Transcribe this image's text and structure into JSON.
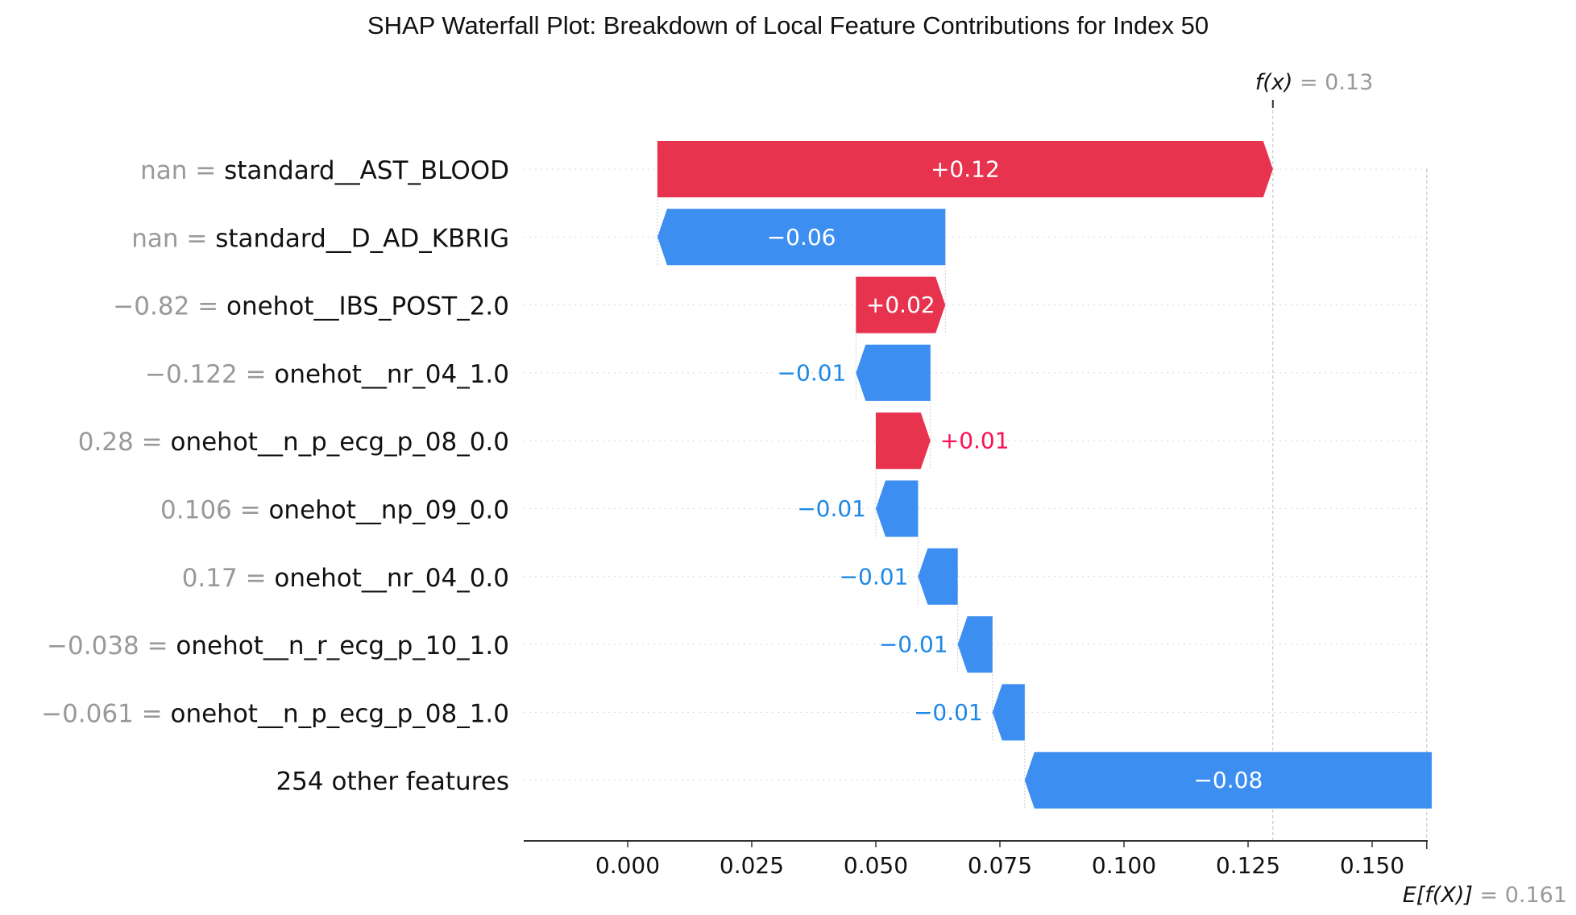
{
  "chart_data": {
    "type": "waterfall",
    "title": "SHAP Waterfall Plot: Breakdown of Local Feature Contributions for Index 50",
    "base_value": 0.161,
    "base_label_prefix": "E[f(X)]",
    "base_label_value": "= 0.161",
    "output_value": 0.13,
    "output_label_prefix": "f(x)",
    "output_label_value": "= 0.13",
    "xlim": [
      -0.021,
      0.161
    ],
    "x_ticks": [
      {
        "value": 0.0,
        "label": "0.000"
      },
      {
        "value": 0.025,
        "label": "0.025"
      },
      {
        "value": 0.05,
        "label": "0.050"
      },
      {
        "value": 0.075,
        "label": "0.075"
      },
      {
        "value": 0.1,
        "label": "0.100"
      },
      {
        "value": 0.125,
        "label": "0.125"
      },
      {
        "value": 0.15,
        "label": "0.150"
      }
    ],
    "colors": {
      "positive": "#ff0d57",
      "positive_fill": "#e8334f",
      "negative": "#1e88e5",
      "negative_fill": "#3c8ef0"
    },
    "features": [
      {
        "value_text": "nan",
        "name": "standard__AST_BLOOD",
        "shap": 0.124,
        "label": "+0.12"
      },
      {
        "value_text": "nan",
        "name": "standard__D_AD_KBRIG",
        "shap": -0.058,
        "label": "−0.06"
      },
      {
        "value_text": "−0.82",
        "name": "onehot__IBS_POST_2.0",
        "shap": 0.018,
        "label": "+0.02"
      },
      {
        "value_text": "−0.122",
        "name": "onehot__nr_04_1.0",
        "shap": -0.015,
        "label": "−0.01"
      },
      {
        "value_text": "0.28",
        "name": "onehot__n_p_ecg_p_08_0.0",
        "shap": 0.011,
        "label": "+0.01"
      },
      {
        "value_text": "0.106",
        "name": "onehot__np_09_0.0",
        "shap": -0.0085,
        "label": "−0.01"
      },
      {
        "value_text": "0.17",
        "name": "onehot__nr_04_0.0",
        "shap": -0.008,
        "label": "−0.01"
      },
      {
        "value_text": "−0.038",
        "name": "onehot__n_r_ecg_p_10_1.0",
        "shap": -0.007,
        "label": "−0.01"
      },
      {
        "value_text": "−0.061",
        "name": "onehot__n_p_ecg_p_08_1.0",
        "shap": -0.0065,
        "label": "−0.01"
      },
      {
        "value_text": "",
        "name": "254 other features",
        "shap": -0.082,
        "label": "−0.08"
      }
    ]
  }
}
